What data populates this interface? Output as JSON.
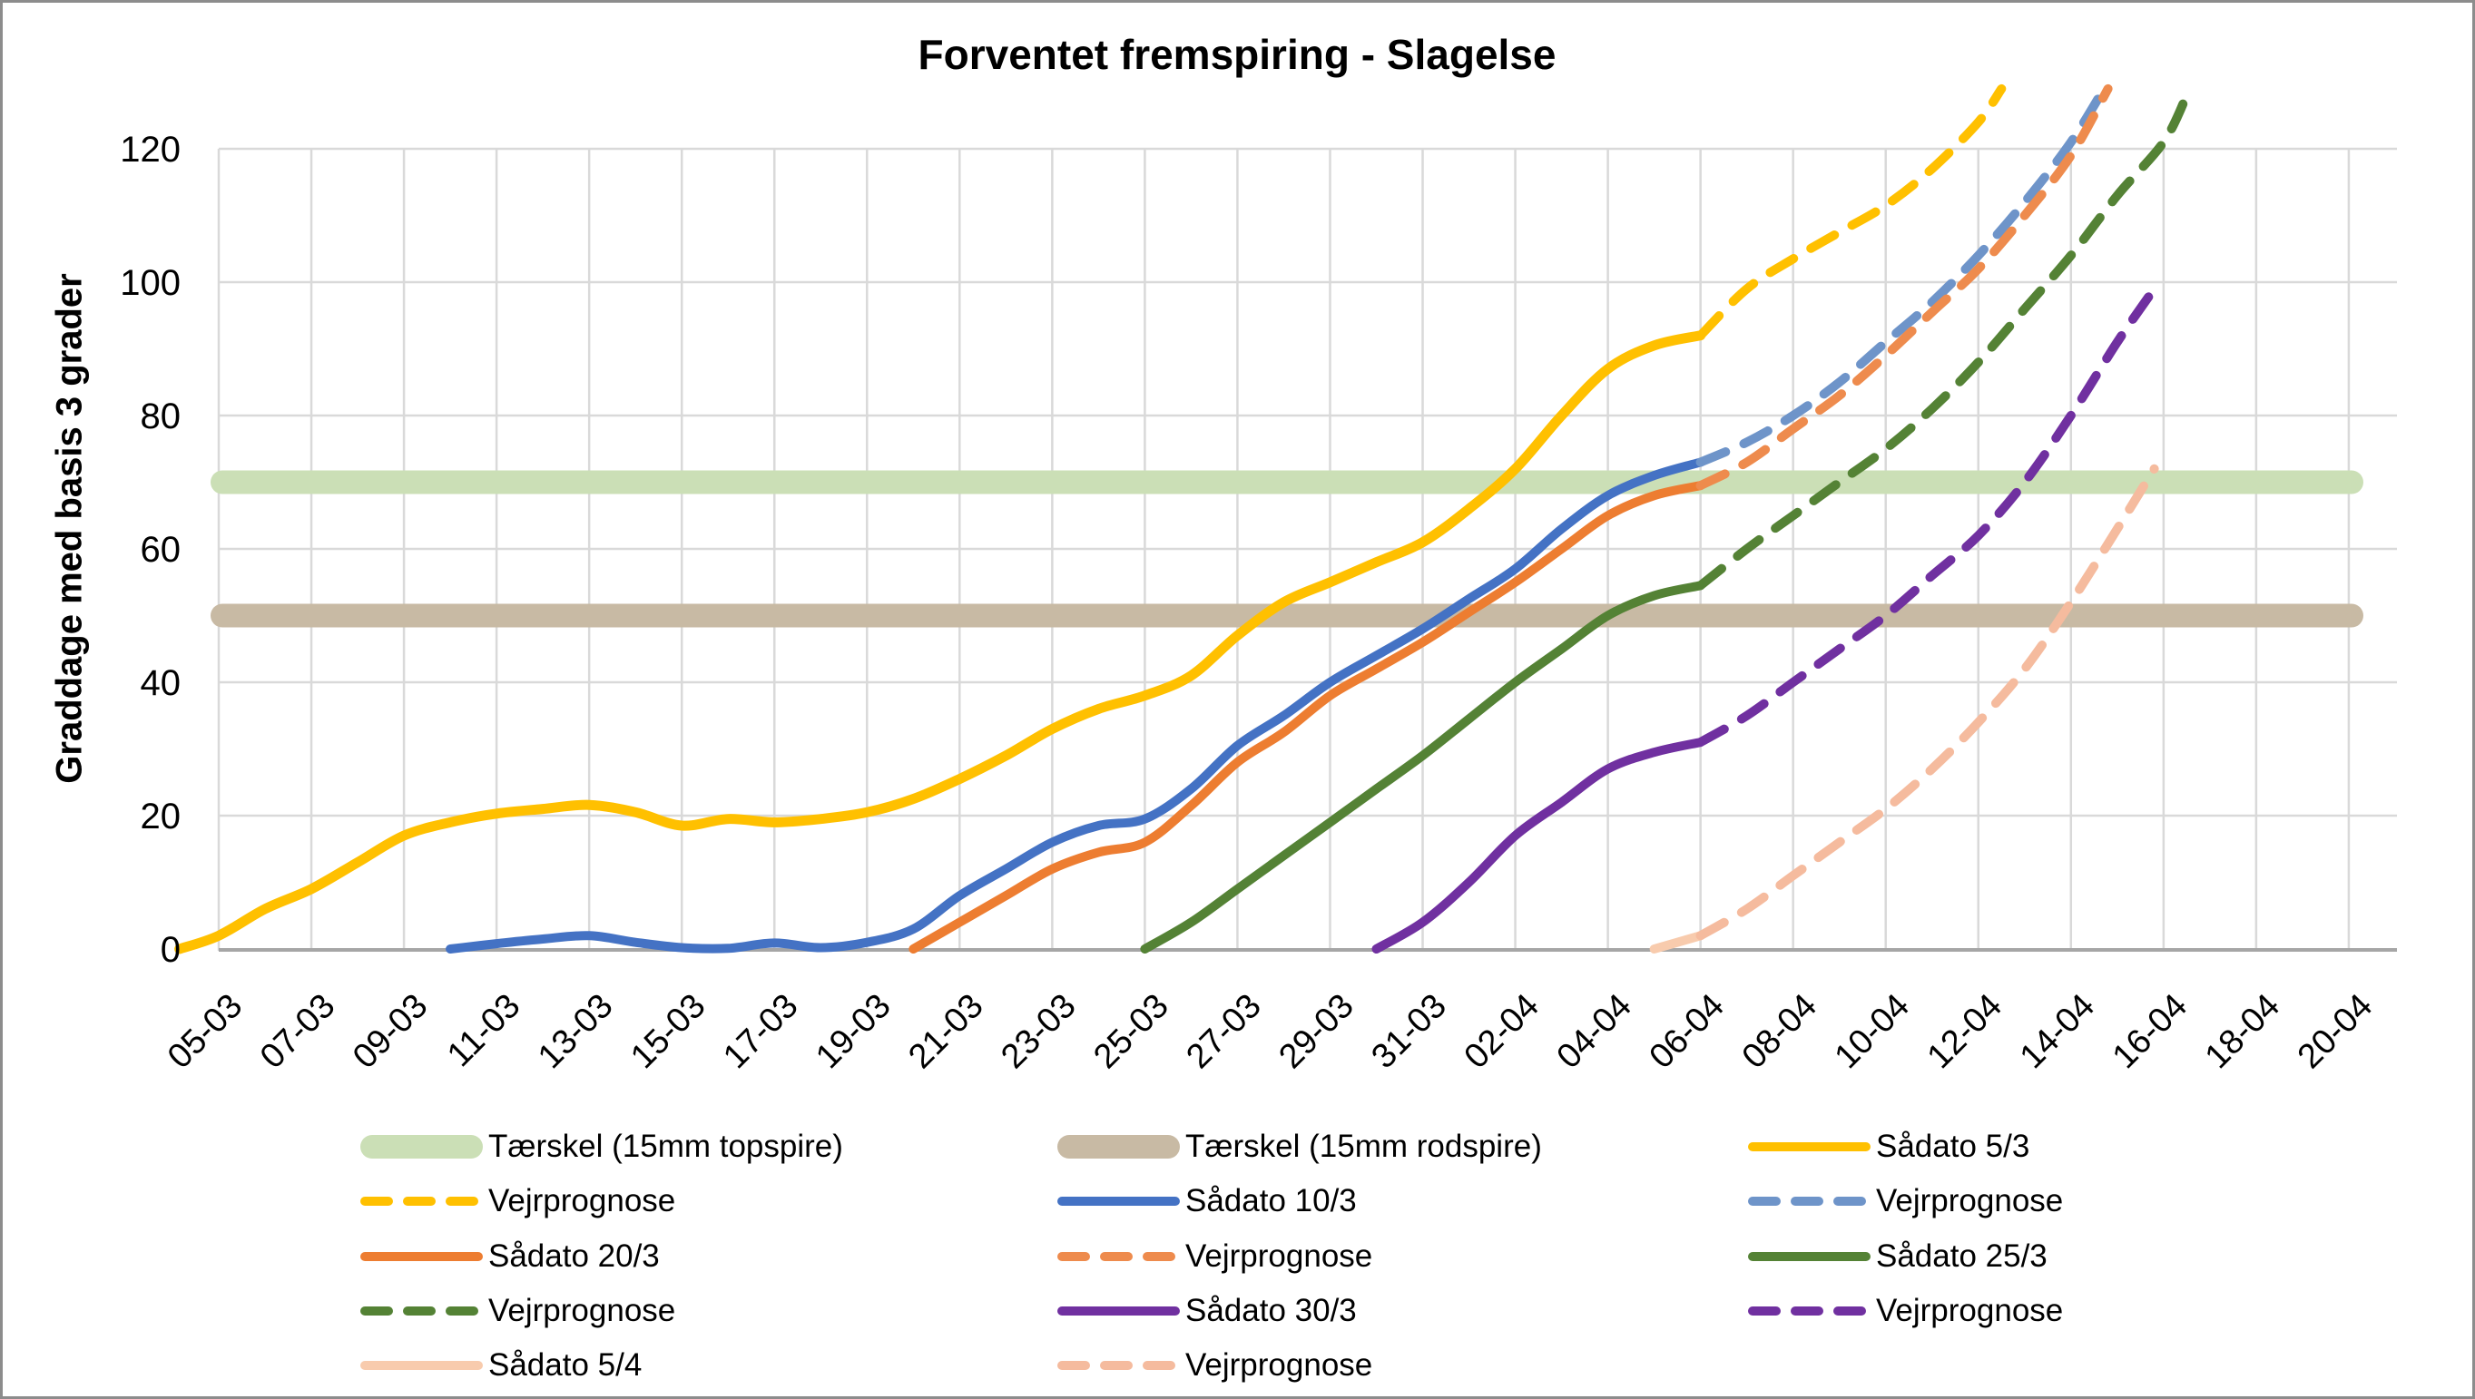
{
  "title": "Forventet fremspiring - Slagelse",
  "y_axis": {
    "title": "Graddage med basis 3 grader",
    "ticks": [
      0,
      20,
      40,
      60,
      80,
      100,
      120
    ],
    "min": 0,
    "max": 120
  },
  "x_axis": {
    "tick_labels": [
      "05-03",
      "07-03",
      "09-03",
      "11-03",
      "13-03",
      "15-03",
      "17-03",
      "19-03",
      "21-03",
      "23-03",
      "25-03",
      "27-03",
      "29-03",
      "31-03",
      "02-04",
      "04-04",
      "06-04",
      "08-04",
      "10-04",
      "12-04",
      "14-04",
      "16-04",
      "18-04",
      "20-04"
    ]
  },
  "colors": {
    "gridline": "#D9D9D9",
    "axis_line": "#A6A6A6",
    "frame_border": "#8C8C8C",
    "threshold_topspire": "#CBDFB6",
    "threshold_rodspire": "#C8BAA4",
    "yellow": "#FFC000",
    "blue": "#4472C4",
    "blue_forecast": "#6E94C9",
    "orange": "#ED7D31",
    "orange_forecast": "#EE8B4D",
    "green": "#548235",
    "purple": "#7030A0",
    "pink": "#F8CBAD",
    "pink_forecast": "#F5BB9E"
  },
  "chart_data": {
    "type": "line",
    "title": "Forventet fremspiring - Slagelse",
    "xlabel": "",
    "ylabel": "Graddage med basis 3 grader",
    "ylim": [
      0,
      120
    ],
    "grid": true,
    "legend_position": "bottom",
    "x_unit": "days since 05-03 (x tick labels every 2 days, 05-03 to 20-04)",
    "x_tick_labels": [
      "05-03",
      "07-03",
      "09-03",
      "11-03",
      "13-03",
      "15-03",
      "17-03",
      "19-03",
      "21-03",
      "23-03",
      "25-03",
      "27-03",
      "29-03",
      "31-03",
      "02-04",
      "04-04",
      "06-04",
      "08-04",
      "10-04",
      "12-04",
      "14-04",
      "16-04",
      "18-04",
      "20-04"
    ],
    "thresholds": [
      {
        "label": "Tærskel (15mm topspire)",
        "value": 70,
        "color": "#CBDFB6"
      },
      {
        "label": "Tærskel (15mm rodspire)",
        "value": 50,
        "color": "#C8BAA4"
      }
    ],
    "series": [
      {
        "name": "Sådato 5/3",
        "style": "solid",
        "color": "#FFC000",
        "width": 11,
        "points": [
          [
            -0.85,
            0
          ],
          [
            0,
            2
          ],
          [
            1,
            6
          ],
          [
            2,
            9
          ],
          [
            3,
            13
          ],
          [
            4,
            17
          ],
          [
            5,
            19
          ],
          [
            6,
            20.3
          ],
          [
            7,
            21
          ],
          [
            8,
            21.6
          ],
          [
            9,
            20.5
          ],
          [
            10,
            18.5
          ],
          [
            11,
            19.5
          ],
          [
            12,
            19
          ],
          [
            13,
            19.5
          ],
          [
            14,
            20.5
          ],
          [
            15,
            22.5
          ],
          [
            16,
            25.5
          ],
          [
            17,
            29
          ],
          [
            18,
            33
          ],
          [
            19,
            36
          ],
          [
            20,
            38
          ],
          [
            21,
            41
          ],
          [
            22,
            47
          ],
          [
            23,
            52
          ],
          [
            24,
            55
          ],
          [
            25,
            58
          ],
          [
            26,
            61
          ],
          [
            27,
            66
          ],
          [
            28,
            72
          ],
          [
            29,
            80
          ],
          [
            30,
            87
          ],
          [
            31,
            90.5
          ],
          [
            32,
            92
          ]
        ]
      },
      {
        "name": "Vejrprognose",
        "forecast_of": "Sådato 5/3",
        "style": "dashed",
        "color": "#FFC000",
        "width": 10,
        "points": [
          [
            32,
            92
          ],
          [
            33,
            99
          ],
          [
            34,
            103.5
          ],
          [
            35,
            107.5
          ],
          [
            36,
            111.5
          ],
          [
            37,
            117
          ],
          [
            38,
            124
          ],
          [
            38.5,
            129
          ]
        ]
      },
      {
        "name": "Sådato 10/3",
        "style": "solid",
        "color": "#4472C4",
        "width": 10,
        "points": [
          [
            5,
            0
          ],
          [
            6,
            0.8
          ],
          [
            7,
            1.5
          ],
          [
            8,
            2
          ],
          [
            9,
            1
          ],
          [
            10,
            0.2
          ],
          [
            11,
            0.1
          ],
          [
            12,
            0.9
          ],
          [
            13,
            0.2
          ],
          [
            14,
            1
          ],
          [
            15,
            3
          ],
          [
            16,
            8
          ],
          [
            17,
            12
          ],
          [
            18,
            16
          ],
          [
            19,
            18.5
          ],
          [
            20,
            19.5
          ],
          [
            21,
            24
          ],
          [
            22,
            30.5
          ],
          [
            23,
            35
          ],
          [
            24,
            40
          ],
          [
            25,
            44
          ],
          [
            26,
            48
          ],
          [
            27,
            52.5
          ],
          [
            28,
            57
          ],
          [
            29,
            63
          ],
          [
            30,
            68
          ],
          [
            31,
            71
          ],
          [
            32,
            73
          ]
        ]
      },
      {
        "name": "Vejrprognose",
        "forecast_of": "Sådato 10/3",
        "style": "dashed",
        "color": "#6E94C9",
        "width": 10,
        "points": [
          [
            32,
            73
          ],
          [
            33,
            76
          ],
          [
            34,
            80
          ],
          [
            35,
            85
          ],
          [
            36,
            91
          ],
          [
            37,
            97
          ],
          [
            38,
            104
          ],
          [
            39,
            112
          ],
          [
            40,
            121
          ],
          [
            40.8,
            130
          ]
        ]
      },
      {
        "name": "Sådato 20/3",
        "style": "solid",
        "color": "#ED7D31",
        "width": 10,
        "points": [
          [
            15,
            0
          ],
          [
            16,
            4
          ],
          [
            17,
            8
          ],
          [
            18,
            12
          ],
          [
            19,
            14.5
          ],
          [
            20,
            16
          ],
          [
            21,
            21.5
          ],
          [
            22,
            28
          ],
          [
            23,
            32.5
          ],
          [
            24,
            38
          ],
          [
            25,
            42
          ],
          [
            26,
            46
          ],
          [
            27,
            50.5
          ],
          [
            28,
            55
          ],
          [
            29,
            60
          ],
          [
            30,
            65
          ],
          [
            31,
            68
          ],
          [
            32,
            69.5
          ]
        ]
      },
      {
        "name": "Vejrprognose",
        "forecast_of": "Sådato 20/3",
        "style": "dashed",
        "color": "#EE8B4D",
        "width": 10,
        "points": [
          [
            32,
            69.5
          ],
          [
            33,
            73
          ],
          [
            34,
            78
          ],
          [
            35,
            83
          ],
          [
            36,
            89
          ],
          [
            37,
            95.5
          ],
          [
            38,
            102
          ],
          [
            39,
            110
          ],
          [
            40,
            119
          ],
          [
            40.8,
            129
          ]
        ]
      },
      {
        "name": "Sådato 25/3",
        "style": "solid",
        "color": "#548235",
        "width": 10,
        "points": [
          [
            20,
            0
          ],
          [
            21,
            4
          ],
          [
            22,
            9
          ],
          [
            23,
            14
          ],
          [
            24,
            19
          ],
          [
            25,
            24
          ],
          [
            26,
            29
          ],
          [
            27,
            34.5
          ],
          [
            28,
            40
          ],
          [
            29,
            45
          ],
          [
            30,
            50
          ],
          [
            31,
            53
          ],
          [
            32,
            54.5
          ]
        ]
      },
      {
        "name": "Vejrprognose",
        "forecast_of": "Sådato 25/3",
        "style": "dashed",
        "color": "#548235",
        "width": 10,
        "points": [
          [
            32,
            54.5
          ],
          [
            33,
            60
          ],
          [
            34,
            65
          ],
          [
            35,
            70
          ],
          [
            36,
            75
          ],
          [
            37,
            81
          ],
          [
            38,
            88
          ],
          [
            39,
            96
          ],
          [
            40,
            104
          ],
          [
            41,
            113
          ],
          [
            42,
            121
          ],
          [
            42.5,
            128
          ]
        ]
      },
      {
        "name": "Sådato 30/3",
        "style": "solid",
        "color": "#7030A0",
        "width": 10,
        "points": [
          [
            25,
            0
          ],
          [
            26,
            4
          ],
          [
            27,
            10
          ],
          [
            28,
            17
          ],
          [
            29,
            22
          ],
          [
            30,
            27
          ],
          [
            31,
            29.5
          ],
          [
            32,
            31
          ]
        ]
      },
      {
        "name": "Vejrprognose",
        "forecast_of": "Sådato 30/3",
        "style": "dashed",
        "color": "#7030A0",
        "width": 10,
        "points": [
          [
            32,
            31
          ],
          [
            33,
            35
          ],
          [
            34,
            40
          ],
          [
            35,
            45
          ],
          [
            36,
            50
          ],
          [
            37,
            56
          ],
          [
            38,
            62
          ],
          [
            39,
            70
          ],
          [
            40,
            80
          ],
          [
            41,
            91
          ],
          [
            41.8,
            99
          ]
        ]
      },
      {
        "name": "Sådato 5/4",
        "style": "solid",
        "color": "#F8CBAD",
        "width": 10,
        "points": [
          [
            31,
            0
          ],
          [
            32,
            2
          ]
        ]
      },
      {
        "name": "Vejrprognose",
        "forecast_of": "Sådato 5/4",
        "style": "dashed",
        "color": "#F5BB9E",
        "width": 10,
        "points": [
          [
            32,
            2
          ],
          [
            33,
            6
          ],
          [
            34,
            11
          ],
          [
            35,
            16
          ],
          [
            36,
            21
          ],
          [
            37,
            27
          ],
          [
            38,
            34
          ],
          [
            39,
            42
          ],
          [
            40,
            52
          ],
          [
            41,
            63
          ],
          [
            41.8,
            72
          ]
        ]
      }
    ]
  },
  "legend": {
    "items": [
      {
        "label": "Tærskel (15mm topspire)",
        "swatch": "band",
        "color": "#CBDFB6"
      },
      {
        "label": "Tærskel (15mm rodspire)",
        "swatch": "band",
        "color": "#C8BAA4"
      },
      {
        "label": "Sådato 5/3",
        "swatch": "line",
        "color": "#FFC000"
      },
      {
        "label": "Vejrprognose",
        "swatch": "dash",
        "color": "#FFC000"
      },
      {
        "label": "Sådato 10/3",
        "swatch": "line",
        "color": "#4472C4"
      },
      {
        "label": "Vejrprognose",
        "swatch": "dash",
        "color": "#6E94C9"
      },
      {
        "label": "Sådato 20/3",
        "swatch": "line",
        "color": "#ED7D31"
      },
      {
        "label": "Vejrprognose",
        "swatch": "dash",
        "color": "#EE8B4D"
      },
      {
        "label": "Sådato 25/3",
        "swatch": "line",
        "color": "#548235"
      },
      {
        "label": "Vejrprognose",
        "swatch": "dash",
        "color": "#548235"
      },
      {
        "label": "Sådato 30/3",
        "swatch": "line",
        "color": "#7030A0"
      },
      {
        "label": "Vejrprognose",
        "swatch": "dash",
        "color": "#7030A0"
      },
      {
        "label": "Sådato 5/4",
        "swatch": "line",
        "color": "#F8CBAD"
      },
      {
        "label": "Vejrprognose",
        "swatch": "dash",
        "color": "#F5BB9E"
      }
    ]
  }
}
